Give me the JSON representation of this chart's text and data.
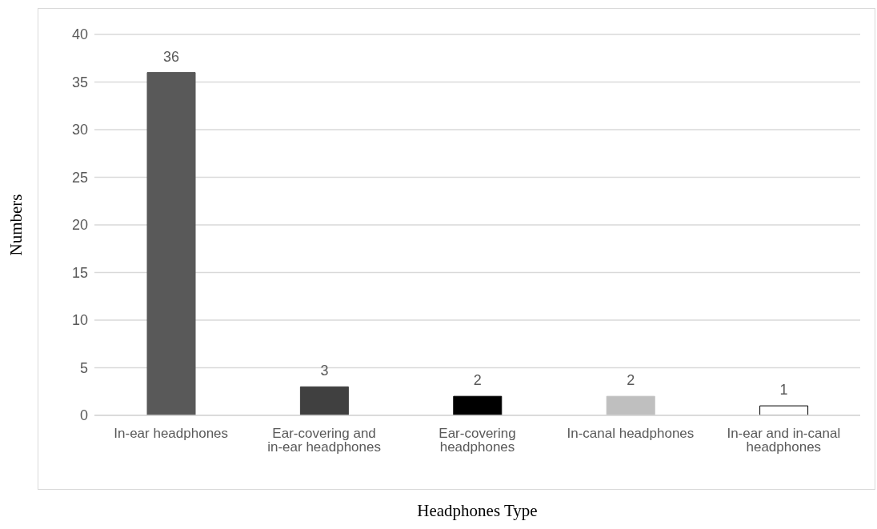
{
  "chart_data": {
    "type": "bar",
    "xlabel": "Headphones Type",
    "ylabel": "Numbers",
    "categories": [
      "In-ear headphones",
      "Ear-covering and in-ear headphones",
      "Ear-covering headphones",
      "In-canal headphones",
      "In-ear and in-canal headphones"
    ],
    "values": [
      36,
      3,
      2,
      2,
      1
    ],
    "colors": [
      "#595959",
      "#404040",
      "#000000",
      "#bfbfbf",
      "#ffffff"
    ],
    "ylim": [
      0,
      40
    ],
    "yticks": [
      0,
      5,
      10,
      15,
      20,
      25,
      30,
      35,
      40
    ],
    "grid": "y",
    "data_labels": true
  }
}
